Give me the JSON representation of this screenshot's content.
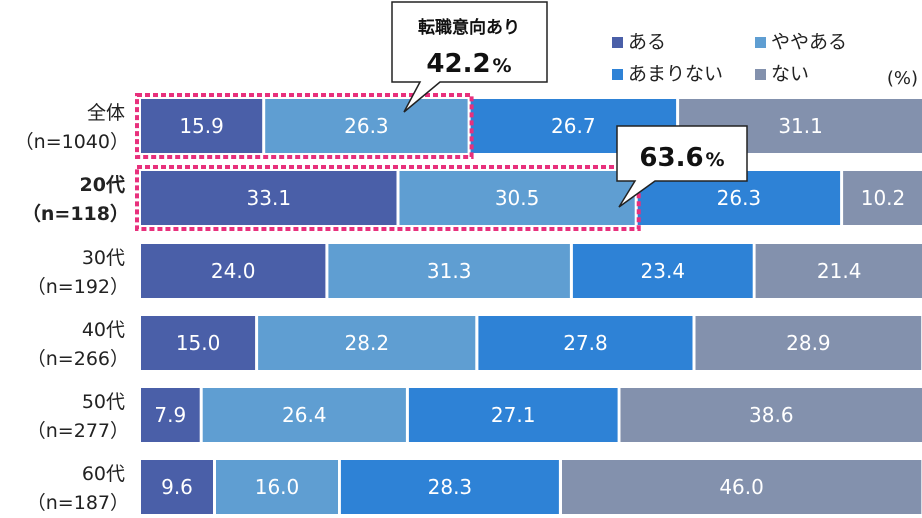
{
  "chart_data": {
    "type": "bar",
    "orientation": "horizontal",
    "stacked": true,
    "percent_total": 100,
    "unit": "(%)",
    "categories": [
      {
        "line1": "全体",
        "line2": "（n=1040）",
        "bold": false
      },
      {
        "line1": "20代",
        "line2": "（n=118）",
        "bold": true
      },
      {
        "line1": "30代",
        "line2": "（n=192）",
        "bold": false
      },
      {
        "line1": "40代",
        "line2": "（n=266）",
        "bold": false
      },
      {
        "line1": "50代",
        "line2": "（n=277）",
        "bold": false
      },
      {
        "line1": "60代",
        "line2": "（n=187）",
        "bold": false
      }
    ],
    "series": [
      {
        "name": "ある",
        "color": "#4A5FA8",
        "values": [
          15.9,
          33.1,
          24.0,
          15.0,
          7.9,
          9.6
        ]
      },
      {
        "name": "ややある",
        "color": "#5F9ED2",
        "values": [
          26.3,
          30.5,
          31.3,
          28.2,
          26.4,
          16.0
        ]
      },
      {
        "name": "あまりない",
        "color": "#2E82D6",
        "values": [
          26.7,
          26.3,
          23.4,
          27.8,
          27.1,
          28.3
        ]
      },
      {
        "name": "ない",
        "color": "#8391AD",
        "values": [
          31.1,
          10.2,
          21.4,
          28.9,
          38.6,
          46.0
        ]
      }
    ],
    "value_labels": [
      [
        "15.9",
        "26.3",
        "26.7",
        "31.1"
      ],
      [
        "33.1",
        "30.5",
        "26.3",
        "10.2"
      ],
      [
        "24.0",
        "31.3",
        "23.4",
        "21.4"
      ],
      [
        "15.0",
        "28.2",
        "27.8",
        "28.9"
      ],
      [
        "7.9",
        "26.4",
        "27.1",
        "38.6"
      ],
      [
        "9.6",
        "16.0",
        "28.3",
        "46.0"
      ]
    ],
    "legend": [
      "ある",
      "ややある",
      "あまりない",
      "ない"
    ],
    "legend_placement": "top-right",
    "highlights": [
      {
        "row": 0,
        "series_count": 2,
        "callout_title": "転職意向あり",
        "callout_value": "42.2",
        "callout_unit": "%"
      },
      {
        "row": 1,
        "series_count": 2,
        "callout_title": "",
        "callout_value": "63.6",
        "callout_unit": "%"
      }
    ],
    "highlight_color": "#E8307C"
  }
}
